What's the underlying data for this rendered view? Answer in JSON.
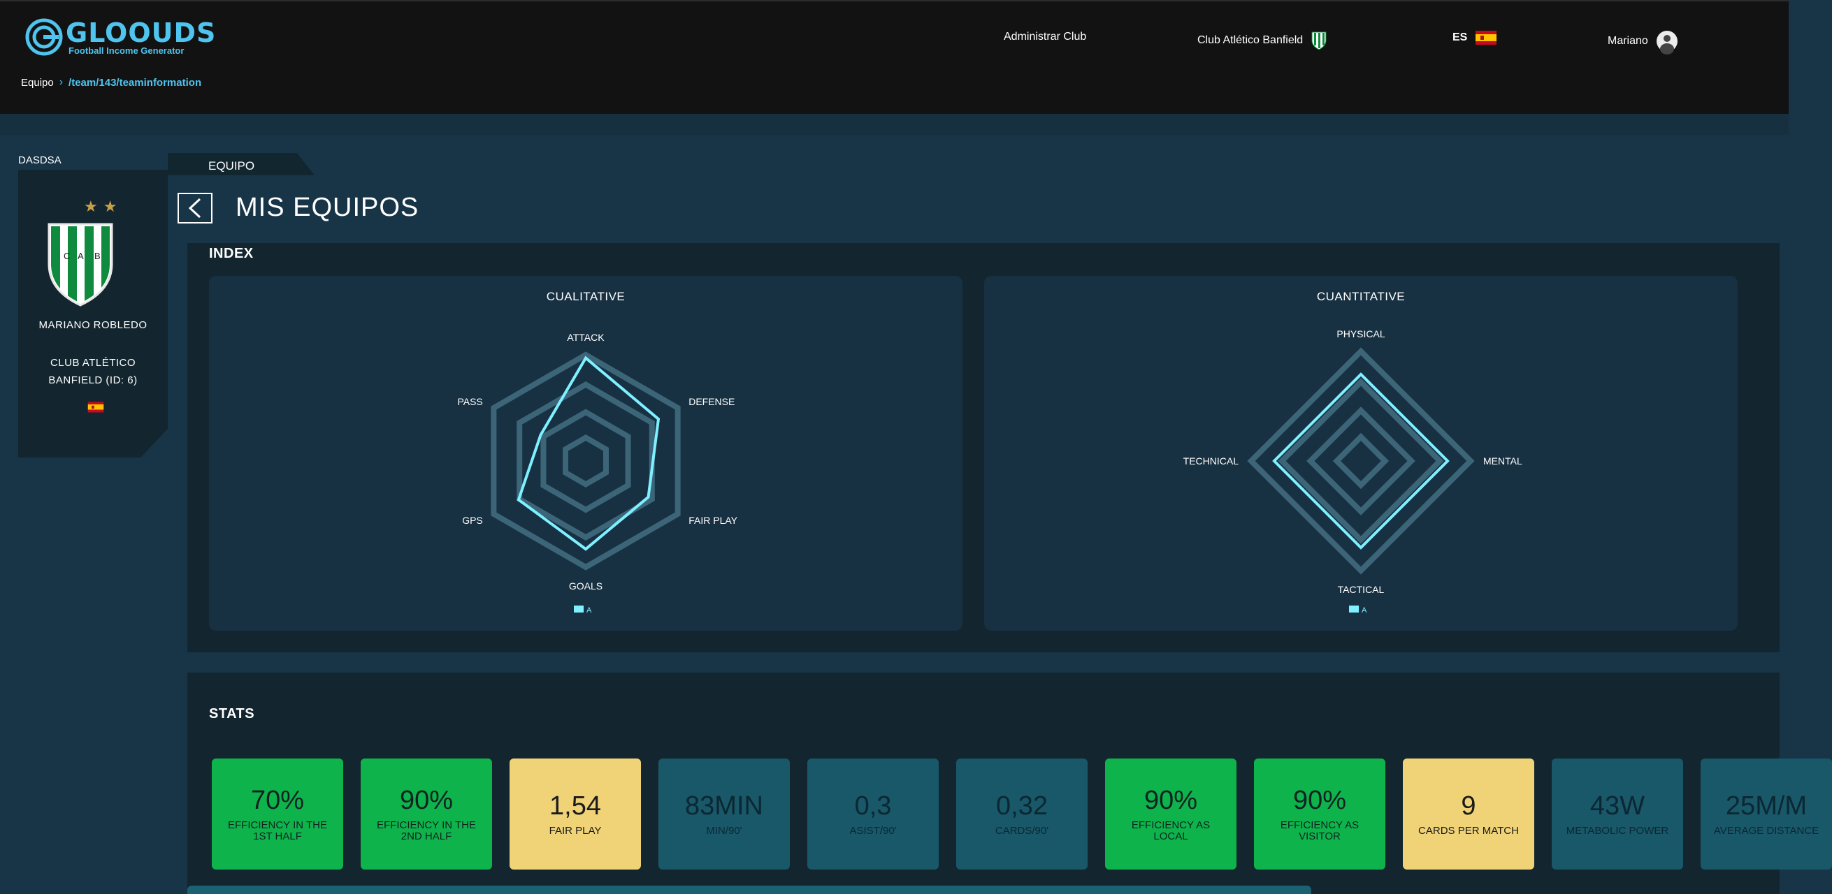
{
  "header": {
    "logo_title": "GLOOUDS",
    "logo_subtitle": "Football Income Generator",
    "admin_club": "Administrar Club",
    "club": "Club Atlético Banfield",
    "language": "ES",
    "user": "Mariano"
  },
  "breadcrumb": {
    "root": "Equipo",
    "path": "/team/143/teaminformation"
  },
  "sidebar": {
    "label": "DASDSA",
    "crest_letters": [
      "C",
      "A",
      "B"
    ],
    "player": "MARIANO ROBLEDO",
    "club_line1": "CLUB ATLÉTICO",
    "club_line2": "BANFIELD (ID: 6)"
  },
  "tab": "EQUIPO",
  "page_title": "MIS EQUIPOS",
  "index": {
    "title": "INDEX",
    "qualitative": {
      "title": "CUALITATIVE",
      "axes": [
        "ATTACK",
        "DEFENSE",
        "FAIR PLAY",
        "GOALS",
        "GPS",
        "PASS"
      ],
      "values": [
        0.97,
        0.79,
        0.68,
        0.83,
        0.73,
        0.49
      ],
      "legend": "A"
    },
    "quantitative": {
      "title": "CUANTITATIVE",
      "axes": [
        "PHYSICAL",
        "MENTAL",
        "TACTICAL",
        "TECHNICAL"
      ],
      "values": [
        0.79,
        0.79,
        0.79,
        0.79
      ],
      "legend": "A"
    }
  },
  "stats": {
    "title": "STATS",
    "items": [
      {
        "value": "70%",
        "label": "EFFICIENCY IN THE 1ST HALF",
        "color": "green"
      },
      {
        "value": "90%",
        "label": "EFFICIENCY IN THE 2ND HALF",
        "color": "green"
      },
      {
        "value": "1,54",
        "label": "FAIR PLAY",
        "color": "yellow"
      },
      {
        "value": "83MIN",
        "label": "MIN/90'",
        "color": "teal"
      },
      {
        "value": "0,3",
        "label": "ASIST/90'",
        "color": "teal"
      },
      {
        "value": "0,32",
        "label": "CARDS/90'",
        "color": "teal"
      },
      {
        "value": "90%",
        "label": "EFFICIENCY AS LOCAL",
        "color": "green"
      },
      {
        "value": "90%",
        "label": "EFFICIENCY AS VISITOR",
        "color": "green"
      },
      {
        "value": "9",
        "label": "CARDS PER MATCH",
        "color": "yellow"
      },
      {
        "value": "43W",
        "label": "METABOLIC POWER",
        "color": "teal"
      },
      {
        "value": "25M/M",
        "label": "AVERAGE DISTANCE",
        "color": "teal"
      }
    ]
  },
  "colors": {
    "accent": "#4fc4ee",
    "radar_line": "#7ff0ff",
    "grid": "#3c6578",
    "green": "#0eb44b",
    "yellow": "#f0d377",
    "teal": "#185869"
  }
}
